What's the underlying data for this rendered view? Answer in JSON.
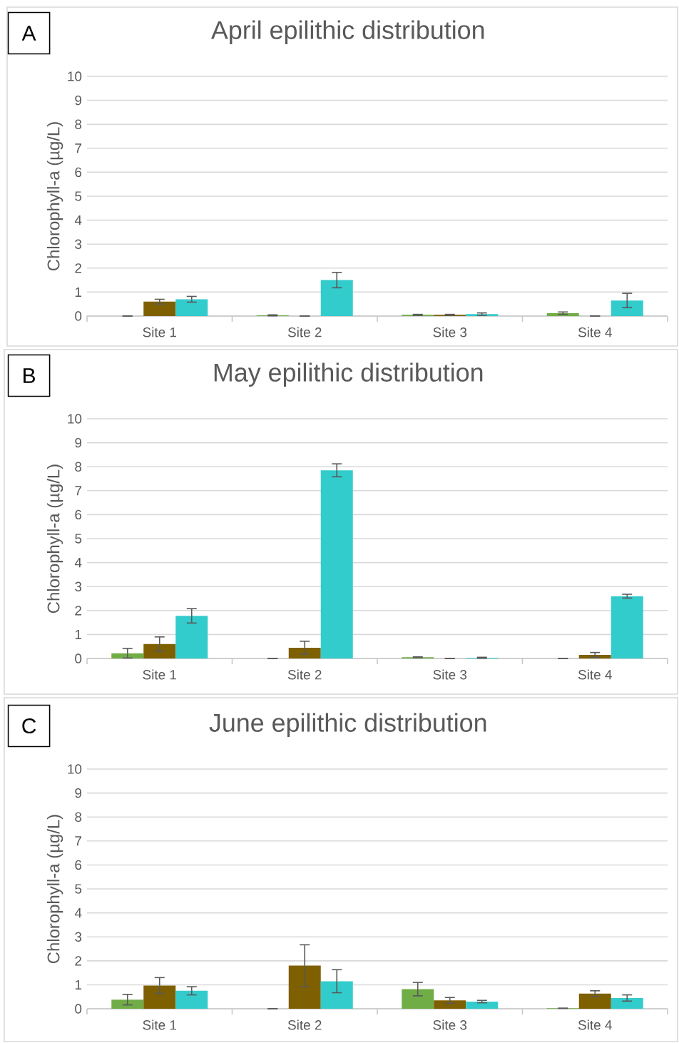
{
  "chart_data": [
    {
      "type": "bar",
      "title": "April epilithic distribution",
      "ylabel": "Chlorophyll-a (µg/L)",
      "annotations": [
        "A"
      ],
      "categories": [
        "Site 1",
        "Site 2",
        "Site 3",
        "Site 4"
      ],
      "ylim": [
        0,
        10
      ],
      "yticks": [
        0,
        1,
        2,
        3,
        4,
        5,
        6,
        7,
        8,
        9,
        10
      ],
      "grid": "y",
      "series": [
        {
          "color": "#70ad47",
          "values": [
            0,
            0.03,
            0.05,
            0.12
          ],
          "errors": [
            null,
            0.02,
            0.02,
            0.05
          ]
        },
        {
          "color": "#7f6000",
          "values": [
            0.6,
            0,
            0.05,
            0
          ],
          "errors": [
            0.1,
            null,
            0.02,
            null
          ]
        },
        {
          "color": "#33cccc",
          "values": [
            0.7,
            1.5,
            0.08,
            0.65
          ],
          "errors": [
            0.12,
            0.32,
            0.05,
            0.3
          ]
        }
      ]
    },
    {
      "type": "bar",
      "title": "May epilithic distribution",
      "ylabel": "Chlorophyll-a (µg/L)",
      "annotations": [
        "B"
      ],
      "categories": [
        "Site 1",
        "Site 2",
        "Site 3",
        "Site 4"
      ],
      "ylim": [
        0,
        10
      ],
      "yticks": [
        0,
        1,
        2,
        3,
        4,
        5,
        6,
        7,
        8,
        9,
        10
      ],
      "grid": "y",
      "series": [
        {
          "color": "#70ad47",
          "values": [
            0.22,
            0,
            0.05,
            0
          ],
          "errors": [
            0.2,
            null,
            0.02,
            null
          ]
        },
        {
          "color": "#7f6000",
          "values": [
            0.6,
            0.45,
            0,
            0.15
          ],
          "errors": [
            0.3,
            0.27,
            null,
            0.1
          ]
        },
        {
          "color": "#33cccc",
          "values": [
            1.78,
            7.85,
            0.03,
            2.6
          ],
          "errors": [
            0.3,
            0.27,
            0.02,
            0.08
          ]
        }
      ]
    },
    {
      "type": "bar",
      "title": "June epilithic distribution",
      "ylabel": "Chlorophyll-a (µg/L)",
      "annotations": [
        "C"
      ],
      "categories": [
        "Site 1",
        "Site 2",
        "Site 3",
        "Site 4"
      ],
      "ylim": [
        0,
        10
      ],
      "yticks": [
        0,
        1,
        2,
        3,
        4,
        5,
        6,
        7,
        8,
        9,
        10
      ],
      "grid": "y",
      "series": [
        {
          "color": "#70ad47",
          "values": [
            0.38,
            0,
            0.82,
            0.02
          ],
          "errors": [
            0.22,
            null,
            0.28,
            null
          ]
        },
        {
          "color": "#7f6000",
          "values": [
            0.97,
            1.8,
            0.35,
            0.63
          ],
          "errors": [
            0.33,
            0.87,
            0.12,
            0.12
          ]
        },
        {
          "color": "#33cccc",
          "values": [
            0.75,
            1.15,
            0.3,
            0.45
          ],
          "errors": [
            0.17,
            0.48,
            0.05,
            0.13
          ]
        }
      ]
    }
  ]
}
